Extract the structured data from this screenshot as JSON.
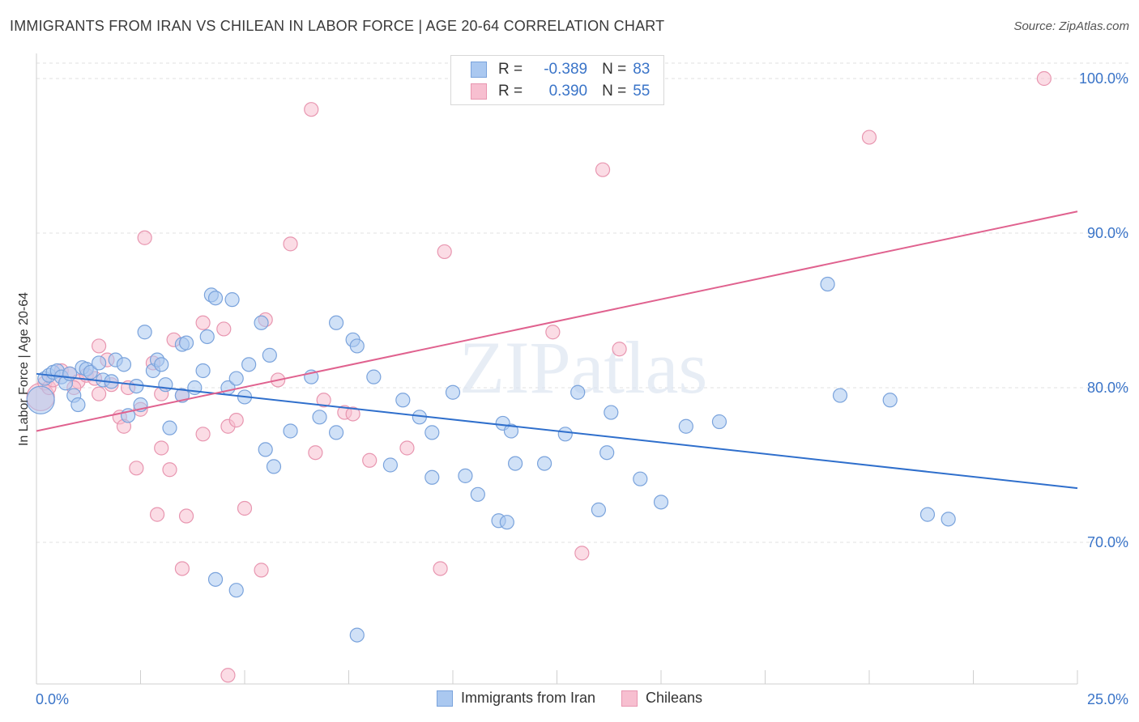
{
  "title": "IMMIGRANTS FROM IRAN VS CHILEAN IN LABOR FORCE | AGE 20-64 CORRELATION CHART",
  "source": "Source: ZipAtlas.com",
  "watermark": "ZIPatlas",
  "legend_top": {
    "rows": [
      {
        "r_label": "R =",
        "r_value": "-0.389",
        "n_label": "N =",
        "n_value": "83"
      },
      {
        "r_label": "R =",
        "r_value": "0.390",
        "n_label": "N =",
        "n_value": "55"
      }
    ]
  },
  "colors": {
    "blue_fill": "#aac8f0",
    "blue_stroke": "#7aa3dc",
    "blue_line": "#2f6fcc",
    "pink_fill": "#f7bfd0",
    "pink_stroke": "#e896b0",
    "pink_line": "#e0628f",
    "tick_text": "#3a74c8",
    "grid": "#e2e2e2"
  },
  "chart_data": {
    "type": "scatter",
    "title": "IMMIGRANTS FROM IRAN VS CHILEAN IN LABOR FORCE | AGE 20-64 CORRELATION CHART",
    "xlabel": "",
    "ylabel": "In Labor Force | Age 20-64",
    "xlim": [
      0,
      25
    ],
    "ylim": [
      60.0,
      101.0
    ],
    "x_tick_labels": [
      "0.0%",
      "25.0%"
    ],
    "y_ticks": [
      70,
      80,
      90,
      100
    ],
    "y_tick_labels": [
      "70.0%",
      "80.0%",
      "90.0%",
      "100.0%"
    ],
    "grid": true,
    "legend_position": "bottom",
    "series": [
      {
        "name": "Immigrants from Iran",
        "color": "#aac8f0",
        "trend": {
          "x": [
            0,
            25
          ],
          "y": [
            80.9,
            73.5
          ]
        },
        "points": [
          [
            0.1,
            79.2
          ],
          [
            0.2,
            80.6
          ],
          [
            0.3,
            80.8
          ],
          [
            0.4,
            81.0
          ],
          [
            0.5,
            81.1
          ],
          [
            0.6,
            80.7
          ],
          [
            0.7,
            80.3
          ],
          [
            0.8,
            80.9
          ],
          [
            0.9,
            79.5
          ],
          [
            1.0,
            78.9
          ],
          [
            1.1,
            81.3
          ],
          [
            1.2,
            81.2
          ],
          [
            1.3,
            81.0
          ],
          [
            1.5,
            81.6
          ],
          [
            1.6,
            80.5
          ],
          [
            1.8,
            80.4
          ],
          [
            1.9,
            81.8
          ],
          [
            2.1,
            81.5
          ],
          [
            2.2,
            78.2
          ],
          [
            2.4,
            80.1
          ],
          [
            2.5,
            78.9
          ],
          [
            2.6,
            83.6
          ],
          [
            2.8,
            81.1
          ],
          [
            2.9,
            81.8
          ],
          [
            3.0,
            81.5
          ],
          [
            3.1,
            80.2
          ],
          [
            3.2,
            77.4
          ],
          [
            3.5,
            82.8
          ],
          [
            3.6,
            82.9
          ],
          [
            3.8,
            80.0
          ],
          [
            3.5,
            79.5
          ],
          [
            4.0,
            81.1
          ],
          [
            4.1,
            83.3
          ],
          [
            4.2,
            86.0
          ],
          [
            4.3,
            85.8
          ],
          [
            4.6,
            80.0
          ],
          [
            4.7,
            85.7
          ],
          [
            4.8,
            80.6
          ],
          [
            5.0,
            79.4
          ],
          [
            5.1,
            81.5
          ],
          [
            5.4,
            84.2
          ],
          [
            5.5,
            76.0
          ],
          [
            5.6,
            82.1
          ],
          [
            5.7,
            74.9
          ],
          [
            6.1,
            77.2
          ],
          [
            6.6,
            80.7
          ],
          [
            6.8,
            78.1
          ],
          [
            7.2,
            77.1
          ],
          [
            7.2,
            84.2
          ],
          [
            7.6,
            83.1
          ],
          [
            7.7,
            82.7
          ],
          [
            8.1,
            80.7
          ],
          [
            8.5,
            75.0
          ],
          [
            8.8,
            79.2
          ],
          [
            9.2,
            78.1
          ],
          [
            9.5,
            77.1
          ],
          [
            9.5,
            74.2
          ],
          [
            10.0,
            79.7
          ],
          [
            10.3,
            74.3
          ],
          [
            10.6,
            73.1
          ],
          [
            11.1,
            71.4
          ],
          [
            11.2,
            77.7
          ],
          [
            11.4,
            77.2
          ],
          [
            11.5,
            75.1
          ],
          [
            12.2,
            75.1
          ],
          [
            12.7,
            77.0
          ],
          [
            13.0,
            79.7
          ],
          [
            13.5,
            72.1
          ],
          [
            13.7,
            75.8
          ],
          [
            13.8,
            78.4
          ],
          [
            14.5,
            74.1
          ],
          [
            15.0,
            72.6
          ],
          [
            15.6,
            77.5
          ],
          [
            16.4,
            77.8
          ],
          [
            19.0,
            86.7
          ],
          [
            19.3,
            79.5
          ],
          [
            20.5,
            79.2
          ],
          [
            21.4,
            71.8
          ],
          [
            21.9,
            71.5
          ],
          [
            4.3,
            67.6
          ],
          [
            4.8,
            66.9
          ],
          [
            7.7,
            64.0
          ],
          [
            11.3,
            71.3
          ]
        ]
      },
      {
        "name": "Chileans",
        "color": "#f7bfd0",
        "trend": {
          "x": [
            0,
            25
          ],
          "y": [
            77.2,
            91.4
          ]
        },
        "points": [
          [
            0.1,
            79.4
          ],
          [
            0.2,
            80.3
          ],
          [
            0.3,
            80.0
          ],
          [
            0.4,
            80.5
          ],
          [
            0.6,
            81.1
          ],
          [
            0.8,
            80.9
          ],
          [
            1.0,
            80.4
          ],
          [
            1.2,
            80.8
          ],
          [
            1.4,
            80.6
          ],
          [
            1.5,
            79.6
          ],
          [
            1.8,
            80.2
          ],
          [
            2.0,
            78.1
          ],
          [
            2.2,
            80.0
          ],
          [
            2.5,
            78.6
          ],
          [
            2.8,
            81.6
          ],
          [
            3.0,
            79.6
          ],
          [
            3.3,
            83.1
          ],
          [
            3.5,
            79.5
          ],
          [
            4.0,
            84.2
          ],
          [
            4.5,
            83.8
          ],
          [
            4.6,
            77.5
          ],
          [
            4.8,
            77.9
          ],
          [
            5.0,
            72.2
          ],
          [
            5.5,
            84.4
          ],
          [
            5.8,
            80.5
          ],
          [
            6.1,
            89.3
          ],
          [
            6.6,
            98.0
          ],
          [
            6.7,
            75.8
          ],
          [
            6.9,
            79.2
          ],
          [
            7.4,
            78.4
          ],
          [
            7.6,
            78.3
          ],
          [
            8.0,
            75.3
          ],
          [
            8.9,
            76.1
          ],
          [
            9.7,
            68.3
          ],
          [
            9.8,
            88.8
          ],
          [
            12.4,
            83.6
          ],
          [
            13.1,
            69.3
          ],
          [
            13.6,
            94.1
          ],
          [
            14.0,
            82.5
          ],
          [
            20.0,
            96.2
          ],
          [
            24.2,
            100.0
          ],
          [
            2.6,
            89.7
          ],
          [
            2.4,
            74.8
          ],
          [
            2.1,
            77.5
          ],
          [
            2.9,
            71.8
          ],
          [
            3.6,
            71.7
          ],
          [
            3.0,
            76.1
          ],
          [
            3.2,
            74.7
          ],
          [
            3.5,
            68.3
          ],
          [
            4.0,
            77.0
          ],
          [
            4.6,
            61.4
          ],
          [
            5.4,
            68.2
          ],
          [
            1.5,
            82.7
          ],
          [
            1.7,
            81.8
          ],
          [
            0.9,
            80.0
          ]
        ]
      }
    ]
  }
}
